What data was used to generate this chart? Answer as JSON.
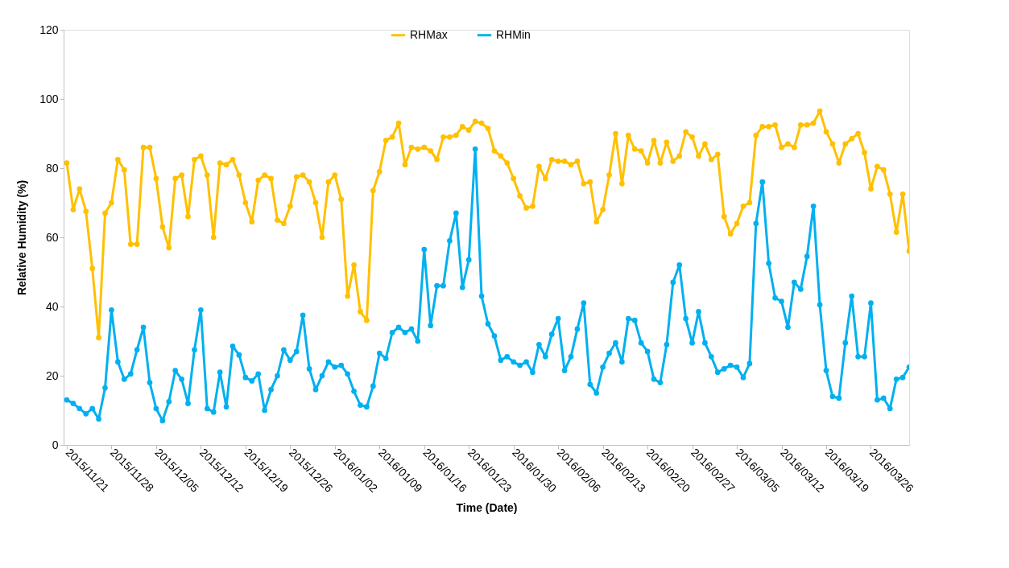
{
  "chart_data": {
    "type": "line",
    "xlabel": "Time (Date)",
    "ylabel": "Relative Humidity (%)",
    "x": [
      "2015-11-21",
      "2015-11-22",
      "2015-11-23",
      "2015-11-24",
      "2015-11-25",
      "2015-11-26",
      "2015-11-27",
      "2015-11-28",
      "2015-11-29",
      "2015-11-30",
      "2015-12-01",
      "2015-12-02",
      "2015-12-03",
      "2015-12-04",
      "2015-12-05",
      "2015-12-06",
      "2015-12-07",
      "2015-12-08",
      "2015-12-09",
      "2015-12-10",
      "2015-12-11",
      "2015-12-12",
      "2015-12-13",
      "2015-12-14",
      "2015-12-15",
      "2015-12-16",
      "2015-12-17",
      "2015-12-18",
      "2015-12-19",
      "2015-12-20",
      "2015-12-21",
      "2015-12-22",
      "2015-12-23",
      "2015-12-24",
      "2015-12-25",
      "2015-12-26",
      "2015-12-27",
      "2015-12-28",
      "2015-12-29",
      "2015-12-30",
      "2015-12-31",
      "2016-01-01",
      "2016-01-02",
      "2016-01-03",
      "2016-01-04",
      "2016-01-05",
      "2016-01-06",
      "2016-01-07",
      "2016-01-08",
      "2016-01-09",
      "2016-01-10",
      "2016-01-11",
      "2016-01-12",
      "2016-01-13",
      "2016-01-14",
      "2016-01-15",
      "2016-01-16",
      "2016-01-17",
      "2016-01-18",
      "2016-01-19",
      "2016-01-20",
      "2016-01-21",
      "2016-01-22",
      "2016-01-23",
      "2016-01-24",
      "2016-01-25",
      "2016-01-26",
      "2016-01-27",
      "2016-01-28",
      "2016-01-29",
      "2016-01-30",
      "2016-01-31",
      "2016-02-01",
      "2016-02-02",
      "2016-02-03",
      "2016-02-04",
      "2016-02-05",
      "2016-02-06",
      "2016-02-07",
      "2016-02-08",
      "2016-02-09",
      "2016-02-10",
      "2016-02-11",
      "2016-02-12",
      "2016-02-13",
      "2016-02-14",
      "2016-02-15",
      "2016-02-16",
      "2016-02-17",
      "2016-02-18",
      "2016-02-19",
      "2016-02-20",
      "2016-02-21",
      "2016-02-22",
      "2016-02-23",
      "2016-02-24",
      "2016-02-25",
      "2016-02-26",
      "2016-02-27",
      "2016-02-28",
      "2016-02-29",
      "2016-03-01",
      "2016-03-02",
      "2016-03-03",
      "2016-03-04",
      "2016-03-05",
      "2016-03-06",
      "2016-03-07",
      "2016-03-08",
      "2016-03-09",
      "2016-03-10",
      "2016-03-11",
      "2016-03-12",
      "2016-03-13",
      "2016-03-14",
      "2016-03-15",
      "2016-03-16",
      "2016-03-17",
      "2016-03-18",
      "2016-03-19",
      "2016-03-20",
      "2016-03-21",
      "2016-03-22",
      "2016-03-23",
      "2016-03-24",
      "2016-03-25",
      "2016-03-26",
      "2016-03-27",
      "2016-03-28",
      "2016-03-29",
      "2016-03-30",
      "2016-03-31",
      "2016-04-01"
    ],
    "series": [
      {
        "name": "RHMax",
        "color": "#ffc000",
        "values": [
          81.5,
          68,
          74,
          67.5,
          51,
          31,
          67,
          70,
          82.5,
          79.5,
          58,
          58,
          86,
          86,
          77,
          63,
          57,
          77,
          78,
          66,
          82.5,
          83.5,
          78,
          60,
          81.5,
          81,
          82.5,
          78,
          70,
          64.5,
          76.5,
          78,
          77,
          65,
          64,
          69,
          77.5,
          78,
          76,
          70,
          60,
          76,
          78,
          71,
          43,
          52,
          38.5,
          36,
          73.5,
          79,
          88,
          89,
          93,
          81,
          86,
          85.5,
          86,
          85,
          82.5,
          89,
          89,
          89.5,
          92,
          91,
          93.5,
          93,
          91.5,
          85,
          83.5,
          81.5,
          77,
          72,
          68.5,
          69,
          80.5,
          77,
          82.5,
          82,
          82,
          81,
          82,
          75.5,
          76,
          64.5,
          68,
          78,
          90,
          75.5,
          89.5,
          85.5,
          85,
          81.5,
          88,
          81.5,
          87.5,
          82,
          83.5,
          90.5,
          89,
          83.5,
          87,
          82.5,
          84,
          66,
          61,
          64,
          69,
          70,
          89.5,
          92,
          92,
          92.5,
          86,
          87,
          86,
          92.5,
          92.5,
          93,
          96.5,
          90.5,
          87,
          81.5,
          87,
          88.5,
          90,
          84.5,
          74,
          80.5,
          79.5,
          72.5,
          61.5,
          72.5,
          56
        ]
      },
      {
        "name": "RHMin",
        "color": "#00b0f0",
        "values": [
          13,
          12,
          10.5,
          9,
          10.5,
          7.5,
          16.5,
          39,
          24,
          19,
          20.5,
          27.5,
          34,
          18,
          10.5,
          7,
          12.5,
          21.5,
          19,
          12,
          27.5,
          39,
          10.5,
          9.5,
          21,
          11,
          28.5,
          26,
          19.5,
          18.5,
          20.5,
          10,
          16,
          20,
          27.5,
          24.5,
          27,
          37.5,
          22,
          16,
          20,
          24,
          22.5,
          23,
          20.5,
          15.5,
          11.5,
          11,
          17,
          26.5,
          25,
          32.5,
          34,
          32.5,
          33.5,
          30,
          56.5,
          34.5,
          46,
          46,
          59,
          67,
          45.5,
          53.5,
          85.5,
          43,
          35,
          31.5,
          24.5,
          25.5,
          24,
          23,
          24,
          21,
          29,
          25.5,
          32,
          36.5,
          21.5,
          25.5,
          33.5,
          41,
          17.5,
          15,
          22.5,
          26.5,
          29.5,
          24,
          36.5,
          36,
          29.5,
          27,
          19,
          18,
          29,
          47,
          52,
          36.5,
          29.5,
          38.5,
          29.5,
          25.5,
          21,
          22,
          23,
          22.5,
          19.5,
          23.5,
          64,
          76,
          52.5,
          42.5,
          41.5,
          34,
          47,
          45,
          54.5,
          69,
          40.5,
          21.5,
          14,
          13.5,
          29.5,
          43,
          25.5,
          25.5,
          41,
          13,
          13.5,
          10.5,
          19,
          19.5,
          22.5
        ]
      }
    ],
    "xlim": [
      "2015-11-20T12:00",
      "2016-04-01"
    ],
    "xticks": [
      {
        "value": "2015-11-21",
        "label": "2015/11/21"
      },
      {
        "value": "2015-11-28",
        "label": "2015/11/28"
      },
      {
        "value": "2015-12-05",
        "label": "2015/12/05"
      },
      {
        "value": "2015-12-12",
        "label": "2015/12/12"
      },
      {
        "value": "2015-12-19",
        "label": "2015/12/19"
      },
      {
        "value": "2015-12-26",
        "label": "2015/12/26"
      },
      {
        "value": "2016-01-02",
        "label": "2016/01/02"
      },
      {
        "value": "2016-01-09",
        "label": "2016/01/09"
      },
      {
        "value": "2016-01-16",
        "label": "2016/01/16"
      },
      {
        "value": "2016-01-23",
        "label": "2016/01/23"
      },
      {
        "value": "2016-01-30",
        "label": "2016/01/30"
      },
      {
        "value": "2016-02-06",
        "label": "2016/02/06"
      },
      {
        "value": "2016-02-13",
        "label": "2016/02/13"
      },
      {
        "value": "2016-02-20",
        "label": "2016/02/20"
      },
      {
        "value": "2016-02-27",
        "label": "2016/02/27"
      },
      {
        "value": "2016-03-05",
        "label": "2016/03/05"
      },
      {
        "value": "2016-03-12",
        "label": "2016/03/12"
      },
      {
        "value": "2016-03-19",
        "label": "2016/03/19"
      },
      {
        "value": "2016-03-26",
        "label": "2016/03/26"
      }
    ],
    "ylim": [
      0,
      120
    ],
    "yticks": [
      0,
      20,
      40,
      60,
      80,
      100,
      120
    ],
    "grid": false,
    "legend": "top",
    "marker": "circle",
    "line_style": "solid"
  }
}
